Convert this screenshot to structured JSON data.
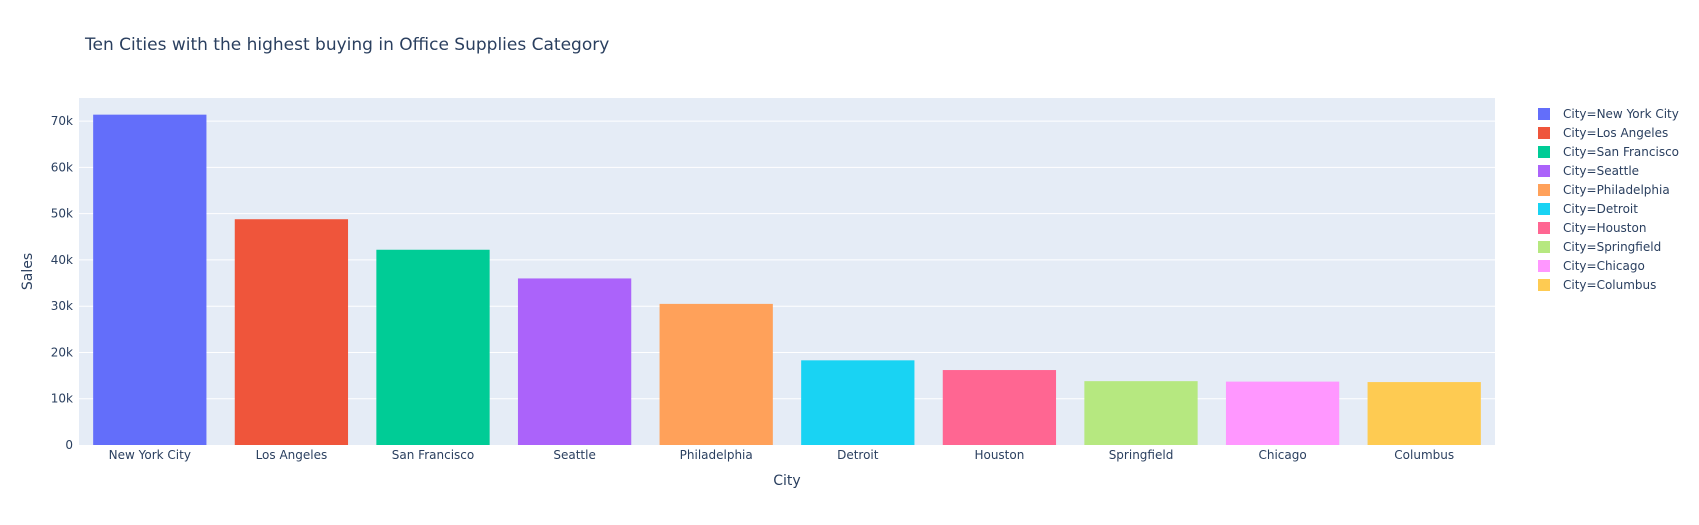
{
  "chart_data": {
    "type": "bar",
    "title": "Ten Cities with the highest buying in Office Supplies Category",
    "xlabel": "City",
    "ylabel": "Sales",
    "ylim": [
      0,
      75000
    ],
    "yticks": [
      0,
      10000,
      20000,
      30000,
      40000,
      50000,
      60000,
      70000
    ],
    "ytick_labels": [
      "0",
      "10k",
      "20k",
      "30k",
      "40k",
      "50k",
      "60k",
      "70k"
    ],
    "grid": true,
    "legend_position": "right",
    "categories": [
      "New York City",
      "Los Angeles",
      "San Francisco",
      "Seattle",
      "Philadelphia",
      "Detroit",
      "Houston",
      "Springfield",
      "Chicago",
      "Columbus"
    ],
    "series": [
      {
        "name": "City=New York City",
        "category": "New York City",
        "value": 71400,
        "color": "#636efa"
      },
      {
        "name": "City=Los Angeles",
        "category": "Los Angeles",
        "value": 48800,
        "color": "#ef553b"
      },
      {
        "name": "City=San Francisco",
        "category": "San Francisco",
        "value": 42200,
        "color": "#00cc96"
      },
      {
        "name": "City=Seattle",
        "category": "Seattle",
        "value": 36000,
        "color": "#ab63fa"
      },
      {
        "name": "City=Philadelphia",
        "category": "Philadelphia",
        "value": 30500,
        "color": "#ffa15a"
      },
      {
        "name": "City=Detroit",
        "category": "Detroit",
        "value": 18300,
        "color": "#19d3f3"
      },
      {
        "name": "City=Houston",
        "category": "Houston",
        "value": 16200,
        "color": "#ff6692"
      },
      {
        "name": "City=Springfield",
        "category": "Springfield",
        "value": 13800,
        "color": "#b6e880"
      },
      {
        "name": "City=Chicago",
        "category": "Chicago",
        "value": 13700,
        "color": "#ff97ff"
      },
      {
        "name": "City=Columbus",
        "category": "Columbus",
        "value": 13600,
        "color": "#fecb52"
      }
    ],
    "colors": {
      "plot_bg": "#e5ecf6",
      "grid": "#ffffff",
      "text": "#2a3f5f"
    }
  }
}
